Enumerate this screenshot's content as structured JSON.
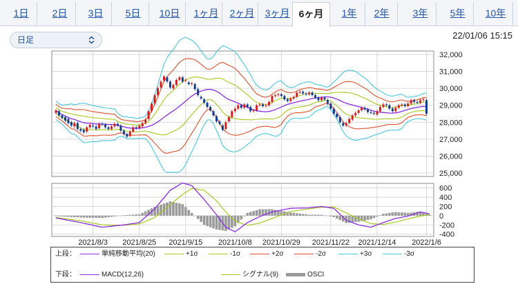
{
  "tabs": [
    {
      "label": "1日",
      "active": false
    },
    {
      "label": "2日",
      "active": false
    },
    {
      "label": "3日",
      "active": false
    },
    {
      "label": "5日",
      "active": false
    },
    {
      "label": "10日",
      "active": false
    },
    {
      "label": "1ヶ月",
      "active": false
    },
    {
      "label": "2ヶ月",
      "active": false
    },
    {
      "label": "3ヶ月",
      "active": false
    },
    {
      "label": "6ヶ月",
      "active": true
    },
    {
      "label": "1年",
      "active": false
    },
    {
      "label": "2年",
      "active": false
    },
    {
      "label": "3年",
      "active": false
    },
    {
      "label": "5年",
      "active": false
    },
    {
      "label": "10年",
      "active": false
    }
  ],
  "period_select": {
    "value": "日足"
  },
  "timestamp": "22/01/06 15:15",
  "colors": {
    "up": "#d11f1f",
    "down": "#123a8f",
    "sma": "#8a2be2",
    "sigma1": "#a8c81e",
    "sigma2": "#e0502a",
    "sigma3": "#48c7e0",
    "macd": "#8a2be2",
    "signal": "#a8c81e",
    "osci": "#9a9a9a",
    "grid": "#cfcfcf",
    "tab_link": "#1f54a8"
  },
  "legend": {
    "upper_label": "上段：",
    "lower_label": "下段：",
    "upper_items": [
      {
        "label": "単純移動平均(20)",
        "color": "#8a2be2"
      },
      {
        "label": "+1σ",
        "color": "#a8c81e"
      },
      {
        "label": "-1σ",
        "color": "#a8c81e"
      },
      {
        "label": "+2σ",
        "color": "#e0502a"
      },
      {
        "label": "-2σ",
        "color": "#e0502a"
      },
      {
        "label": "+3σ",
        "color": "#48c7e0"
      },
      {
        "label": "-3σ",
        "color": "#48c7e0"
      }
    ],
    "lower_items": [
      {
        "label": "MACD(12,26)",
        "color": "#8a2be2"
      },
      {
        "label": "シグナル(9)",
        "color": "#a8c81e"
      },
      {
        "label": "OSCI",
        "color": "#9a9a9a"
      }
    ]
  },
  "chart_data": [
    {
      "type": "candlestick",
      "title": "",
      "y_ticks": [
        "32,000",
        "31,000",
        "30,000",
        "29,000",
        "28,000",
        "27,000",
        "26,000",
        "25,000"
      ],
      "ylim": [
        25000,
        32000
      ],
      "x_tick_labels": [
        "2021/8/3",
        "2021/8/25",
        "2021/9/15",
        "2021/10/8",
        "2021/10/29",
        "2021/11/22",
        "2021/12/14",
        "2022/1/6"
      ],
      "x_tick_index": [
        12,
        27,
        42,
        58,
        73,
        89,
        104,
        120
      ],
      "n_periods": 122,
      "candles": [
        [
          28550,
          28700
        ],
        [
          28650,
          28400
        ],
        [
          28400,
          28250
        ],
        [
          28300,
          28100
        ],
        [
          28200,
          27950
        ],
        [
          28000,
          27800
        ],
        [
          27750,
          27950
        ],
        [
          27950,
          27600
        ],
        [
          27600,
          27500
        ],
        [
          27550,
          27400
        ],
        [
          27450,
          27700
        ],
        [
          27700,
          27850
        ],
        [
          27800,
          27750
        ],
        [
          27750,
          27600
        ],
        [
          27650,
          27900
        ],
        [
          27900,
          27850
        ],
        [
          27850,
          27700
        ],
        [
          27700,
          27600
        ],
        [
          27600,
          27750
        ],
        [
          27750,
          27900
        ],
        [
          27900,
          27800
        ],
        [
          27800,
          27500
        ],
        [
          27500,
          27300
        ],
        [
          27300,
          27150
        ],
        [
          27200,
          27450
        ],
        [
          27450,
          27700
        ],
        [
          27700,
          27650
        ],
        [
          27650,
          27800
        ],
        [
          27750,
          27950
        ],
        [
          27950,
          28150
        ],
        [
          28200,
          28650
        ],
        [
          28650,
          29100
        ],
        [
          29100,
          29600
        ],
        [
          29600,
          30000
        ],
        [
          30050,
          30400
        ],
        [
          30450,
          30700
        ],
        [
          30650,
          30400
        ],
        [
          30400,
          30050
        ],
        [
          30000,
          30200
        ],
        [
          30200,
          30500
        ],
        [
          30500,
          30650
        ],
        [
          30650,
          30400
        ],
        [
          30450,
          30500
        ],
        [
          30350,
          30250
        ],
        [
          30250,
          30300
        ],
        [
          30250,
          29950
        ],
        [
          29950,
          29600
        ],
        [
          29500,
          29400
        ],
        [
          29350,
          29150
        ],
        [
          29150,
          28900
        ],
        [
          28900,
          28700
        ],
        [
          28650,
          28400
        ],
        [
          28350,
          28050
        ],
        [
          28050,
          27900
        ],
        [
          27800,
          27550
        ],
        [
          27600,
          28000
        ],
        [
          28050,
          28300
        ],
        [
          28300,
          28650
        ],
        [
          28650,
          28800
        ],
        [
          28800,
          29000
        ],
        [
          29000,
          28850
        ],
        [
          28850,
          29050
        ],
        [
          29050,
          28900
        ],
        [
          28900,
          28650
        ],
        [
          28650,
          28700
        ],
        [
          28700,
          29000
        ],
        [
          29000,
          29050
        ],
        [
          29050,
          28950
        ],
        [
          28950,
          29000
        ],
        [
          29000,
          29200
        ],
        [
          29200,
          29550
        ],
        [
          29550,
          29600
        ],
        [
          29600,
          29650
        ],
        [
          29650,
          29550
        ],
        [
          29550,
          29350
        ],
        [
          29350,
          29250
        ],
        [
          29250,
          29400
        ],
        [
          29400,
          29500
        ],
        [
          29500,
          29750
        ],
        [
          29750,
          29800
        ],
        [
          29800,
          29700
        ],
        [
          29700,
          29650
        ],
        [
          29650,
          29750
        ],
        [
          29750,
          29600
        ],
        [
          29600,
          29450
        ],
        [
          29450,
          29300
        ],
        [
          29300,
          29450
        ],
        [
          29450,
          29350
        ],
        [
          29300,
          29100
        ],
        [
          29100,
          28800
        ],
        [
          28800,
          28500
        ],
        [
          28500,
          28300
        ],
        [
          28300,
          28000
        ],
        [
          27950,
          27800
        ],
        [
          27800,
          27950
        ],
        [
          27950,
          28200
        ],
        [
          28150,
          28400
        ],
        [
          28400,
          28550
        ],
        [
          28550,
          28700
        ],
        [
          28700,
          28850
        ],
        [
          28850,
          28750
        ],
        [
          28750,
          28600
        ],
        [
          28600,
          28550
        ],
        [
          28550,
          28500
        ],
        [
          28450,
          28650
        ],
        [
          28650,
          28900
        ],
        [
          28900,
          29050
        ],
        [
          29050,
          29000
        ],
        [
          29000,
          28800
        ],
        [
          28800,
          28650
        ],
        [
          28650,
          28850
        ],
        [
          28850,
          29000
        ],
        [
          29000,
          29050
        ],
        [
          29050,
          28950
        ],
        [
          28950,
          29100
        ],
        [
          29100,
          29300
        ],
        [
          29300,
          29200
        ],
        [
          29200,
          29150
        ],
        [
          29150,
          29300
        ],
        [
          29300,
          29350
        ],
        [
          29300,
          28500
        ]
      ]
    },
    {
      "type": "macd",
      "y_ticks": [
        "600",
        "400",
        "200",
        "0",
        "-200",
        "-400"
      ],
      "ylim": [
        -450,
        700
      ],
      "x_tick_labels": [
        "2021/8/3",
        "2021/8/25",
        "2021/9/15",
        "2021/10/8",
        "2021/10/29",
        "2021/11/22",
        "2021/12/14",
        "2022/1/6"
      ],
      "macd_points": [
        [
          0,
          -50
        ],
        [
          8,
          -150
        ],
        [
          15,
          -250
        ],
        [
          22,
          -200
        ],
        [
          27,
          -150
        ],
        [
          32,
          150
        ],
        [
          37,
          550
        ],
        [
          41,
          710
        ],
        [
          44,
          650
        ],
        [
          48,
          350
        ],
        [
          52,
          20
        ],
        [
          55,
          -250
        ],
        [
          58,
          -350
        ],
        [
          62,
          -150
        ],
        [
          66,
          -20
        ],
        [
          70,
          80
        ],
        [
          76,
          160
        ],
        [
          82,
          170
        ],
        [
          86,
          200
        ],
        [
          90,
          160
        ],
        [
          94,
          -100
        ],
        [
          98,
          -200
        ],
        [
          102,
          -250
        ],
        [
          106,
          -150
        ],
        [
          110,
          -60
        ],
        [
          114,
          -10
        ],
        [
          118,
          80
        ],
        [
          121,
          40
        ]
      ],
      "signal_points": [
        [
          0,
          -40
        ],
        [
          8,
          -110
        ],
        [
          15,
          -200
        ],
        [
          22,
          -210
        ],
        [
          27,
          -180
        ],
        [
          32,
          -40
        ],
        [
          37,
          240
        ],
        [
          41,
          460
        ],
        [
          44,
          590
        ],
        [
          48,
          550
        ],
        [
          52,
          320
        ],
        [
          55,
          80
        ],
        [
          58,
          -120
        ],
        [
          62,
          -210
        ],
        [
          66,
          -160
        ],
        [
          70,
          -60
        ],
        [
          76,
          90
        ],
        [
          82,
          150
        ],
        [
          86,
          180
        ],
        [
          90,
          190
        ],
        [
          94,
          60
        ],
        [
          98,
          -70
        ],
        [
          102,
          -170
        ],
        [
          106,
          -190
        ],
        [
          110,
          -140
        ],
        [
          114,
          -70
        ],
        [
          118,
          -10
        ],
        [
          121,
          20
        ]
      ],
      "osci_points": [
        [
          0,
          -10
        ],
        [
          8,
          -40
        ],
        [
          15,
          -50
        ],
        [
          22,
          10
        ],
        [
          27,
          30
        ],
        [
          32,
          190
        ],
        [
          37,
          310
        ],
        [
          41,
          250
        ],
        [
          44,
          60
        ],
        [
          48,
          -200
        ],
        [
          52,
          -300
        ],
        [
          55,
          -330
        ],
        [
          58,
          -230
        ],
        [
          62,
          60
        ],
        [
          66,
          140
        ],
        [
          70,
          140
        ],
        [
          76,
          70
        ],
        [
          82,
          20
        ],
        [
          86,
          20
        ],
        [
          90,
          -30
        ],
        [
          94,
          -160
        ],
        [
          98,
          -130
        ],
        [
          102,
          -80
        ],
        [
          106,
          40
        ],
        [
          110,
          80
        ],
        [
          114,
          60
        ],
        [
          118,
          90
        ],
        [
          121,
          20
        ]
      ]
    }
  ]
}
